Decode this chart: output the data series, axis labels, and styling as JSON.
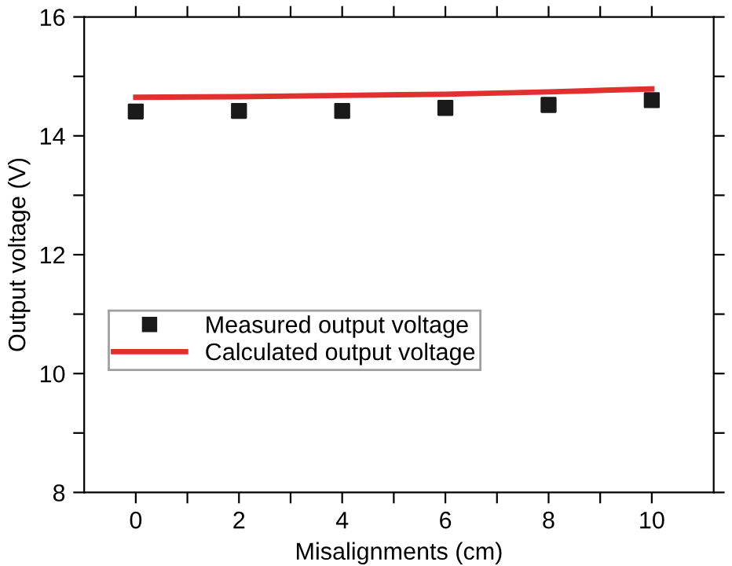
{
  "chart_data": {
    "type": "scatter",
    "xlabel": "Misalignments (cm)",
    "ylabel": "Output voltage (V)",
    "x": [
      0,
      2,
      4,
      6,
      8,
      10
    ],
    "series": [
      {
        "name": "Measured output voltage",
        "color": "#1a1a1a",
        "marker": "square",
        "values": [
          14.41,
          14.42,
          14.42,
          14.47,
          14.52,
          14.6
        ]
      },
      {
        "name": "Calculated output voltage",
        "type": "line",
        "color": "#e03030",
        "marker": "none",
        "line_style": "solid",
        "values": [
          14.65,
          14.66,
          14.68,
          14.7,
          14.74,
          14.79
        ]
      }
    ],
    "xlim": [
      -1,
      11.2
    ],
    "ylim": [
      8,
      16
    ],
    "xticks": [
      0,
      {
        "value": 1,
        "label": null
      },
      2,
      {
        "value": 3,
        "label": null
      },
      4,
      {
        "value": 5,
        "label": null
      },
      6,
      {
        "value": 7,
        "label": null
      },
      8,
      {
        "value": 9,
        "label": null
      },
      10
    ],
    "yticks": [
      8,
      {
        "value": 9,
        "label": null
      },
      10,
      {
        "value": 11,
        "label": null
      },
      12,
      {
        "value": 13,
        "label": null
      },
      14,
      {
        "value": 15,
        "label": null
      },
      16
    ],
    "grid": false,
    "legend": "bottom left"
  }
}
